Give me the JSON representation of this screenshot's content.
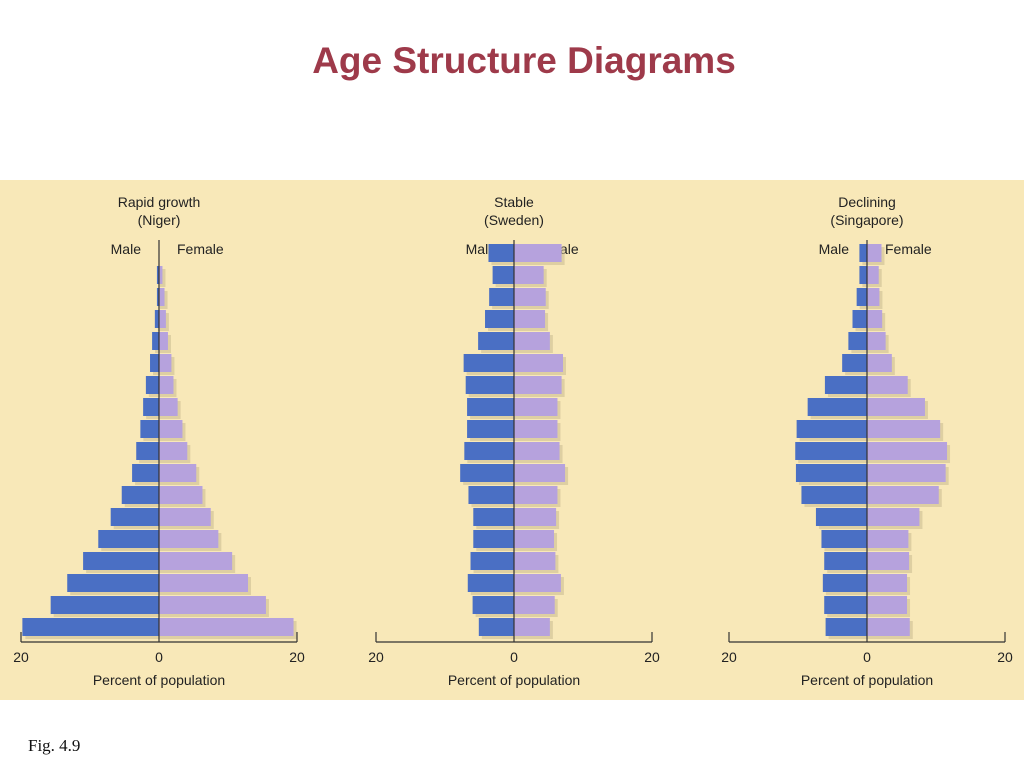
{
  "slide": {
    "title": "Age Structure Diagrams",
    "caption": "Fig. 4.9"
  },
  "colors": {
    "title": "#9e3a4a",
    "panel": "#f8e8b8",
    "male": "#4a6fc4",
    "female": "#b6a2dd",
    "axis": "#333333"
  },
  "chart_data": [
    {
      "type": "bar",
      "subtitle": [
        "Rapid growth",
        "(Niger)"
      ],
      "left_label": "Male",
      "right_label": "Female",
      "xlabel": "Percent of population",
      "xticks": [
        "20",
        "0",
        "20"
      ],
      "xlim": [
        -20,
        20
      ],
      "series": [
        {
          "name": "Male",
          "values": [
            19.8,
            15.7,
            13.3,
            11.0,
            8.8,
            7.0,
            5.4,
            3.9,
            3.3,
            2.7,
            2.3,
            1.9,
            1.3,
            1.0,
            0.6,
            0.3,
            0.3
          ]
        },
        {
          "name": "Female",
          "values": [
            19.5,
            15.5,
            12.9,
            10.6,
            8.6,
            7.5,
            6.3,
            5.4,
            4.1,
            3.4,
            2.7,
            2.1,
            1.8,
            1.3,
            1.0,
            0.8,
            0.5
          ]
        }
      ]
    },
    {
      "type": "bar",
      "subtitle": [
        "Stable",
        "(Sweden)"
      ],
      "left_label": "Male",
      "right_label": "Female",
      "xlabel": "Percent of population",
      "xticks": [
        "20",
        "0",
        "20"
      ],
      "xlim": [
        -20,
        20
      ],
      "series": [
        {
          "name": "Male",
          "values": [
            5.1,
            6.0,
            6.7,
            6.3,
            5.9,
            5.9,
            6.6,
            7.8,
            7.2,
            6.8,
            6.8,
            7.0,
            7.3,
            5.2,
            4.2,
            3.6,
            3.1,
            3.7
          ]
        },
        {
          "name": "Female",
          "values": [
            5.2,
            5.9,
            6.8,
            6.0,
            5.8,
            6.1,
            6.3,
            7.4,
            6.6,
            6.3,
            6.3,
            6.9,
            7.1,
            5.2,
            4.5,
            4.6,
            4.3,
            6.9
          ]
        }
      ]
    },
    {
      "type": "bar",
      "subtitle": [
        "Declining",
        "(Singapore)"
      ],
      "left_label": "Male",
      "right_label": "Female",
      "xlabel": "Percent of population",
      "xticks": [
        "20",
        "0",
        "20"
      ],
      "xlim": [
        -20,
        20
      ],
      "series": [
        {
          "name": "Male",
          "values": [
            6.0,
            6.2,
            6.4,
            6.2,
            6.6,
            7.4,
            9.5,
            10.3,
            10.4,
            10.2,
            8.6,
            6.1,
            3.6,
            2.7,
            2.1,
            1.5,
            1.1,
            1.1
          ]
        },
        {
          "name": "Female",
          "values": [
            6.2,
            5.8,
            5.8,
            6.1,
            6.0,
            7.6,
            10.4,
            11.4,
            11.6,
            10.6,
            8.4,
            5.9,
            3.6,
            2.7,
            2.2,
            1.8,
            1.7,
            2.1
          ]
        }
      ]
    }
  ]
}
